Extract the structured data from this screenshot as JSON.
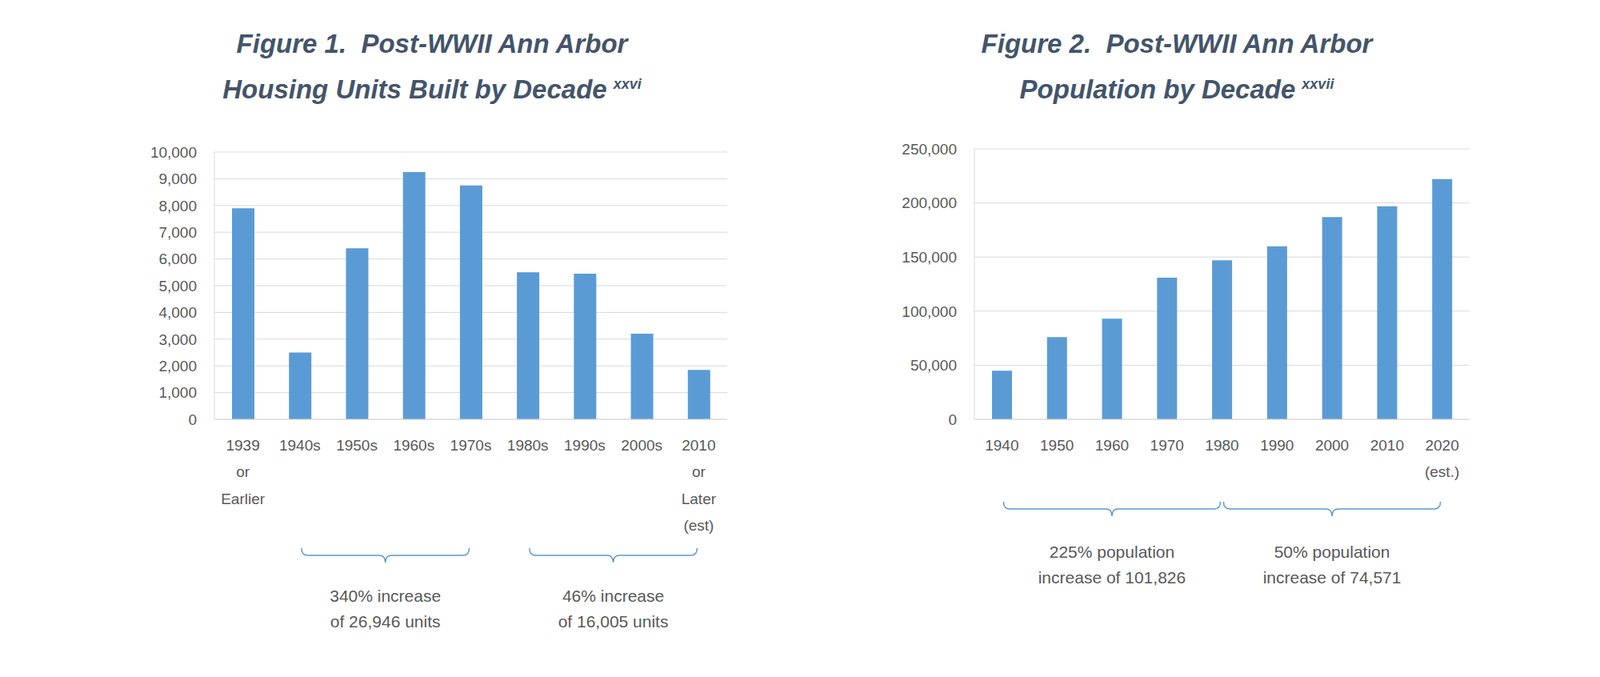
{
  "chart_data": [
    {
      "type": "bar",
      "title": [
        "Figure 1.  Post-WWII Ann Arbor",
        "Housing Units Built by Decade"
      ],
      "title_note": "xxvi",
      "categories": [
        "1939 or Earlier",
        "1940s",
        "1950s",
        "1960s",
        "1970s",
        "1980s",
        "1990s",
        "2000s",
        "2010 or Later (est)"
      ],
      "values": [
        7900,
        2500,
        6400,
        9250,
        8750,
        5500,
        5450,
        3200,
        1850
      ],
      "color": "#5b9bd5",
      "ylim": [
        0,
        10000
      ],
      "yticks": [
        0,
        {
          "value": 1000,
          "label": "1,000"
        },
        {
          "value": 2000,
          "label": "2,000"
        },
        {
          "value": 3000,
          "label": "3,000"
        },
        {
          "value": 4000,
          "label": "4,000"
        },
        {
          "value": 5000,
          "label": "5,000"
        },
        {
          "value": 6000,
          "label": "6,000"
        },
        {
          "value": 7000,
          "label": "7,000"
        },
        {
          "value": 8000,
          "label": "8,000"
        },
        {
          "value": 9000,
          "label": "9,000"
        },
        {
          "value": 10000,
          "label": "10,000"
        }
      ],
      "grid": true,
      "annotations": [
        {
          "start": "1940s",
          "end": "1970s",
          "text": [
            "340% increase",
            "of 26,946 units"
          ]
        },
        {
          "start": "1980s",
          "end": "2010 or Later (est)",
          "text": [
            "46% increase",
            "of 16,005 units"
          ]
        }
      ]
    },
    {
      "type": "bar",
      "title": [
        "Figure 2.  Post-WWII Ann Arbor",
        "Population by Decade"
      ],
      "title_note": "xxvii",
      "categories": [
        "1940",
        "1950",
        "1960",
        "1970",
        "1980",
        "1990",
        "2000",
        "2010",
        "2020 (est.)"
      ],
      "values": [
        45000,
        76000,
        93000,
        131000,
        147000,
        160000,
        187000,
        197000,
        222000
      ],
      "color": "#5b9bd5",
      "ylim": [
        0,
        250000
      ],
      "yticks": [
        0,
        {
          "value": 50000,
          "label": "50,000"
        },
        {
          "value": 100000,
          "label": "100,000"
        },
        {
          "value": 150000,
          "label": "150,000"
        },
        {
          "value": 200000,
          "label": "200,000"
        },
        {
          "value": 250000,
          "label": "250,000"
        }
      ],
      "grid": true,
      "annotations": [
        {
          "start": "1940",
          "end": "1980",
          "text": [
            "225% population",
            "increase of 101,826"
          ]
        },
        {
          "start": "1980",
          "end": "2020 (est.)",
          "text": [
            "50% population",
            "increase of 74,571"
          ]
        }
      ]
    }
  ]
}
